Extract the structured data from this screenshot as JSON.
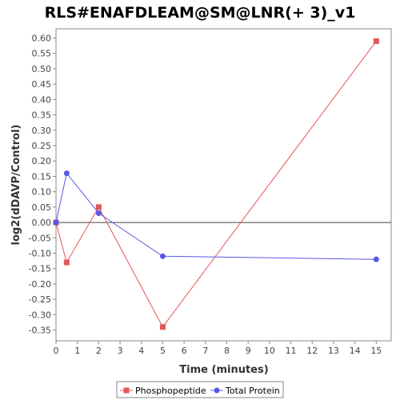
{
  "chart_data": {
    "type": "line",
    "title": "RLS#ENAFDLEAM@SM@LNR(+ 3)_v1",
    "xlabel": "Time (minutes)",
    "ylabel": "log2(dDAVP/Control)",
    "xlim": [
      0,
      15.7
    ],
    "ylim": [
      -0.385,
      0.63
    ],
    "x_ticks": [
      0,
      1,
      2,
      3,
      4,
      5,
      6,
      7,
      8,
      9,
      10,
      11,
      12,
      13,
      14,
      15
    ],
    "y_ticks": [
      -0.35,
      -0.3,
      -0.25,
      -0.2,
      -0.15,
      -0.1,
      -0.05,
      0.0,
      0.05,
      0.1,
      0.15,
      0.2,
      0.25,
      0.3,
      0.35,
      0.4,
      0.45,
      0.5,
      0.55,
      0.6
    ],
    "baseline": 0,
    "grid": false,
    "legend_position": "bottom",
    "series": [
      {
        "name": "Phosphopeptide",
        "color": "#e15759",
        "marker": "square",
        "x": [
          0,
          0.5,
          2,
          5,
          15
        ],
        "y": [
          0.0,
          -0.13,
          0.05,
          -0.34,
          0.59
        ]
      },
      {
        "name": "Total Protein",
        "color": "#5858e6",
        "marker": "circle",
        "x": [
          0,
          0.5,
          2,
          5,
          15
        ],
        "y": [
          0.0,
          0.16,
          0.03,
          -0.11,
          -0.12
        ]
      }
    ]
  }
}
